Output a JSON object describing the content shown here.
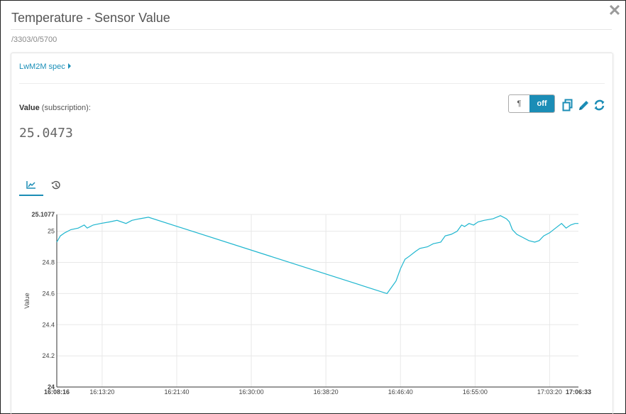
{
  "modal": {
    "title": "Temperature - Sensor Value",
    "path": "/3303/0/5700",
    "close_icon": "close-icon"
  },
  "spec": {
    "label": "LwM2M spec"
  },
  "value": {
    "label_bold": "Value",
    "label_suffix": " (subscription):",
    "current": "25.0473"
  },
  "toggle": {
    "pilcrow": "¶",
    "off": "off"
  },
  "actions": [
    "copy-icon",
    "edit-icon",
    "refresh-icon"
  ],
  "tabs": [
    {
      "icon": "line-chart-icon",
      "active": true
    },
    {
      "icon": "history-icon",
      "active": false
    }
  ],
  "colors": {
    "accent": "#1b8db6",
    "line": "#1fb6cf",
    "grid": "#e8e8e8"
  },
  "chart_data": {
    "type": "line",
    "ylabel": "Value",
    "ylim": [
      24,
      25.1077
    ],
    "y_ticks": [
      "24",
      "24.2",
      "24.4",
      "24.6",
      "24.8",
      "25",
      "25.1077"
    ],
    "x_range": [
      "16:08:16",
      "17:06:33"
    ],
    "x_ticks": [
      "16:08:16",
      "16:13:20",
      "16:21:40",
      "16:30:00",
      "16:38:20",
      "16:46:40",
      "16:55:00",
      "17:03:20",
      "17:06:33"
    ],
    "series": [
      {
        "points": [
          [
            "16:08:16",
            24.93
          ],
          [
            "16:08:40",
            24.97
          ],
          [
            "16:09:10",
            24.99
          ],
          [
            "16:09:50",
            25.01
          ],
          [
            "16:10:40",
            25.02
          ],
          [
            "16:11:20",
            25.04
          ],
          [
            "16:11:40",
            25.02
          ],
          [
            "16:12:20",
            25.04
          ],
          [
            "16:13:10",
            25.05
          ],
          [
            "16:14:10",
            25.06
          ],
          [
            "16:15:00",
            25.07
          ],
          [
            "16:16:00",
            25.05
          ],
          [
            "16:16:40",
            25.07
          ],
          [
            "16:17:30",
            25.08
          ],
          [
            "16:18:30",
            25.09
          ],
          [
            "16:45:10",
            24.6
          ],
          [
            "16:45:40",
            24.64
          ],
          [
            "16:46:10",
            24.68
          ],
          [
            "16:46:40",
            24.76
          ],
          [
            "16:47:10",
            24.82
          ],
          [
            "16:47:40",
            24.84
          ],
          [
            "16:48:20",
            24.87
          ],
          [
            "16:48:50",
            24.89
          ],
          [
            "16:49:40",
            24.9
          ],
          [
            "16:50:20",
            24.92
          ],
          [
            "16:51:10",
            24.93
          ],
          [
            "16:51:40",
            24.97
          ],
          [
            "16:52:20",
            24.98
          ],
          [
            "16:53:00",
            25.0
          ],
          [
            "16:53:30",
            25.04
          ],
          [
            "16:53:50",
            25.03
          ],
          [
            "16:54:20",
            25.05
          ],
          [
            "16:54:50",
            25.04
          ],
          [
            "16:55:20",
            25.06
          ],
          [
            "16:56:00",
            25.07
          ],
          [
            "16:57:00",
            25.08
          ],
          [
            "16:57:50",
            25.1
          ],
          [
            "16:58:30",
            25.08
          ],
          [
            "16:58:50",
            25.06
          ],
          [
            "16:59:10",
            25.01
          ],
          [
            "16:59:40",
            24.98
          ],
          [
            "17:00:20",
            24.96
          ],
          [
            "17:01:00",
            24.94
          ],
          [
            "17:01:40",
            24.93
          ],
          [
            "17:02:10",
            24.94
          ],
          [
            "17:02:40",
            24.97
          ],
          [
            "17:03:20",
            24.99
          ],
          [
            "17:04:00",
            25.02
          ],
          [
            "17:04:40",
            25.05
          ],
          [
            "17:05:10",
            25.02
          ],
          [
            "17:05:40",
            25.04
          ],
          [
            "17:06:10",
            25.05
          ],
          [
            "17:06:33",
            25.05
          ]
        ]
      }
    ]
  }
}
